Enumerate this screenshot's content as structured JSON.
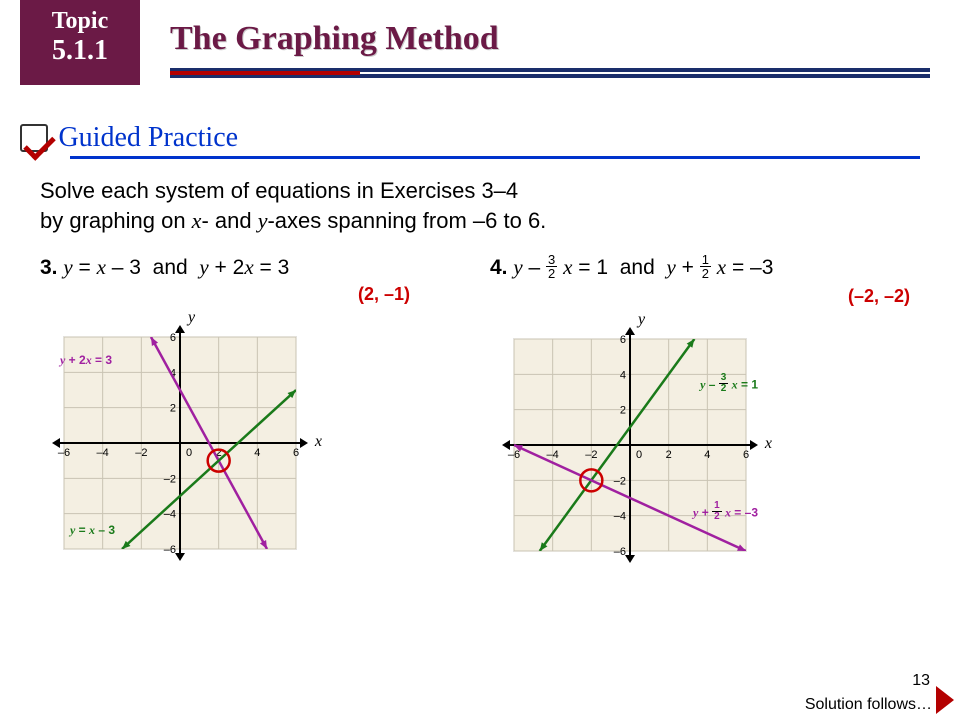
{
  "header": {
    "topic_label": "Topic",
    "topic_number": "5.1.1",
    "title": "The Graphing Method",
    "title_color": "#6b1a46",
    "underline_color": "#1a2e6b",
    "accent_color": "#b30000"
  },
  "section": {
    "title": "Guided Practice",
    "color": "#0033cc"
  },
  "instructions": {
    "line1": "Solve each system of equations in Exercises 3–4",
    "line2_a": "by graphing on ",
    "line2_b": "- and ",
    "line2_c": "-axes spanning from –6 to 6."
  },
  "problems": {
    "p3": {
      "num": "3.",
      "eq_a": "y = x – 3",
      "join": "  and  ",
      "eq_b": "y + 2x = 3",
      "answer": "(2, –1)",
      "chart": {
        "type": "line-system",
        "xlim": [
          -6,
          6
        ],
        "ylim": [
          -6,
          6
        ],
        "tick_step": 2,
        "background_color": "#f4efe2",
        "grid_color": "#c9c3b3",
        "axis_color": "#000000",
        "lines": [
          {
            "label": "y + 2x = 3",
            "color": "#a020a0",
            "points": [
              [
                -1.5,
                6
              ],
              [
                4.5,
                -6
              ]
            ],
            "width": 2.5
          },
          {
            "label": "y = x – 3",
            "color": "#1a7a1a",
            "points": [
              [
                -3,
                -6
              ],
              [
                6,
                3
              ]
            ],
            "width": 2.5
          }
        ],
        "solution_point": [
          2,
          -1
        ],
        "solution_circle_color": "#c00"
      }
    },
    "p4": {
      "num": "4.",
      "eq_a_pre": "y – ",
      "eq_a_frac_n": "3",
      "eq_a_frac_d": "2",
      "eq_a_post": " x = 1",
      "join": "  and  ",
      "eq_b_pre": "y + ",
      "eq_b_frac_n": "1",
      "eq_b_frac_d": "2",
      "eq_b_post": " x = –3",
      "answer": "(–2, –2)",
      "chart": {
        "type": "line-system",
        "xlim": [
          -6,
          6
        ],
        "ylim": [
          -6,
          6
        ],
        "tick_step": 2,
        "background_color": "#f4efe2",
        "grid_color": "#c9c3b3",
        "axis_color": "#000000",
        "lines": [
          {
            "label": "y – 3/2 x = 1",
            "color": "#1a7a1a",
            "points": [
              [
                -4.67,
                -6
              ],
              [
                3.33,
                6
              ]
            ],
            "width": 2.5
          },
          {
            "label": "y + 1/2 x = –3",
            "color": "#a020a0",
            "points": [
              [
                -6,
                0
              ],
              [
                6,
                -6
              ]
            ],
            "width": 2.5
          }
        ],
        "solution_point": [
          -2,
          -2
        ],
        "solution_circle_color": "#c00"
      }
    }
  },
  "footer": {
    "page": "13",
    "solution_text": "Solution follows…"
  }
}
